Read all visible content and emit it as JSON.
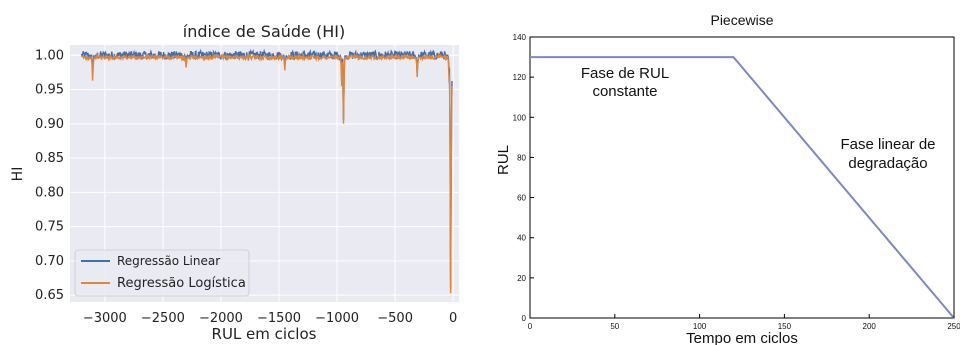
{
  "chart_data": [
    {
      "type": "line",
      "title": "índice de Saúde (HI)",
      "xlabel": "RUL em ciclos",
      "ylabel": "HI",
      "xlim": [
        -3300,
        50
      ],
      "ylim": [
        0.64,
        1.015
      ],
      "x_ticks": [
        -3000,
        -2500,
        -2000,
        -1500,
        -1000,
        -500,
        0
      ],
      "x_tick_labels": [
        "−3000",
        "−2500",
        "−2000",
        "−1500",
        "−1000",
        "−500",
        "0"
      ],
      "y_ticks": [
        0.65,
        0.7,
        0.75,
        0.8,
        0.85,
        0.9,
        0.95,
        1.0
      ],
      "y_tick_labels": [
        "0.65",
        "0.70",
        "0.75",
        "0.80",
        "0.85",
        "0.90",
        "0.95",
        "1.00"
      ],
      "grid": true,
      "legend": "lower-left",
      "x_range": [
        -3200,
        -10
      ],
      "series": [
        {
          "name": "Regressão Linear",
          "color": "#3f6fb0",
          "base": 1.0,
          "noise": 0.006,
          "dips": [
            {
              "x": -3105,
              "y": 0.975
            },
            {
              "x": -2300,
              "y": 0.988
            },
            {
              "x": -1450,
              "y": 0.985
            },
            {
              "x": -945,
              "y": 0.905
            },
            {
              "x": -960,
              "y": 0.97
            },
            {
              "x": -310,
              "y": 0.975
            },
            {
              "x": -35,
              "y": 0.975
            },
            {
              "x": -22,
              "y": 0.66
            },
            {
              "x": -15,
              "y": 0.9
            }
          ]
        },
        {
          "name": "Regressão Logística",
          "color": "#e0853a",
          "base": 0.997,
          "noise": 0.003,
          "dips": [
            {
              "x": -3105,
              "y": 0.963
            },
            {
              "x": -2300,
              "y": 0.982
            },
            {
              "x": -1450,
              "y": 0.978
            },
            {
              "x": -945,
              "y": 0.9
            },
            {
              "x": -960,
              "y": 0.955
            },
            {
              "x": -310,
              "y": 0.968
            },
            {
              "x": -35,
              "y": 0.96
            },
            {
              "x": -22,
              "y": 0.653
            },
            {
              "x": -15,
              "y": 0.885
            }
          ]
        }
      ]
    },
    {
      "type": "line",
      "title": "Piecewise",
      "xlabel": "Tempo em ciclos",
      "ylabel": "RUL",
      "xlim": [
        0,
        250
      ],
      "ylim": [
        0,
        140
      ],
      "x_ticks": [
        0,
        50,
        100,
        150,
        200,
        250
      ],
      "x_tick_labels": [
        "0",
        "50",
        "100",
        "150",
        "200",
        "250"
      ],
      "y_ticks": [
        0,
        20,
        40,
        60,
        80,
        100,
        120,
        140
      ],
      "y_tick_labels": [
        "0",
        "20",
        "40",
        "60",
        "80",
        "100",
        "120",
        "140"
      ],
      "grid": false,
      "series": [
        {
          "color": "#7f86c6",
          "x": [
            0,
            120,
            250
          ],
          "y": [
            130,
            130,
            0
          ]
        }
      ],
      "annotations": [
        {
          "lines": [
            "Fase de RUL",
            "constante"
          ]
        },
        {
          "lines": [
            "Fase linear de",
            "degradação"
          ]
        }
      ]
    }
  ]
}
